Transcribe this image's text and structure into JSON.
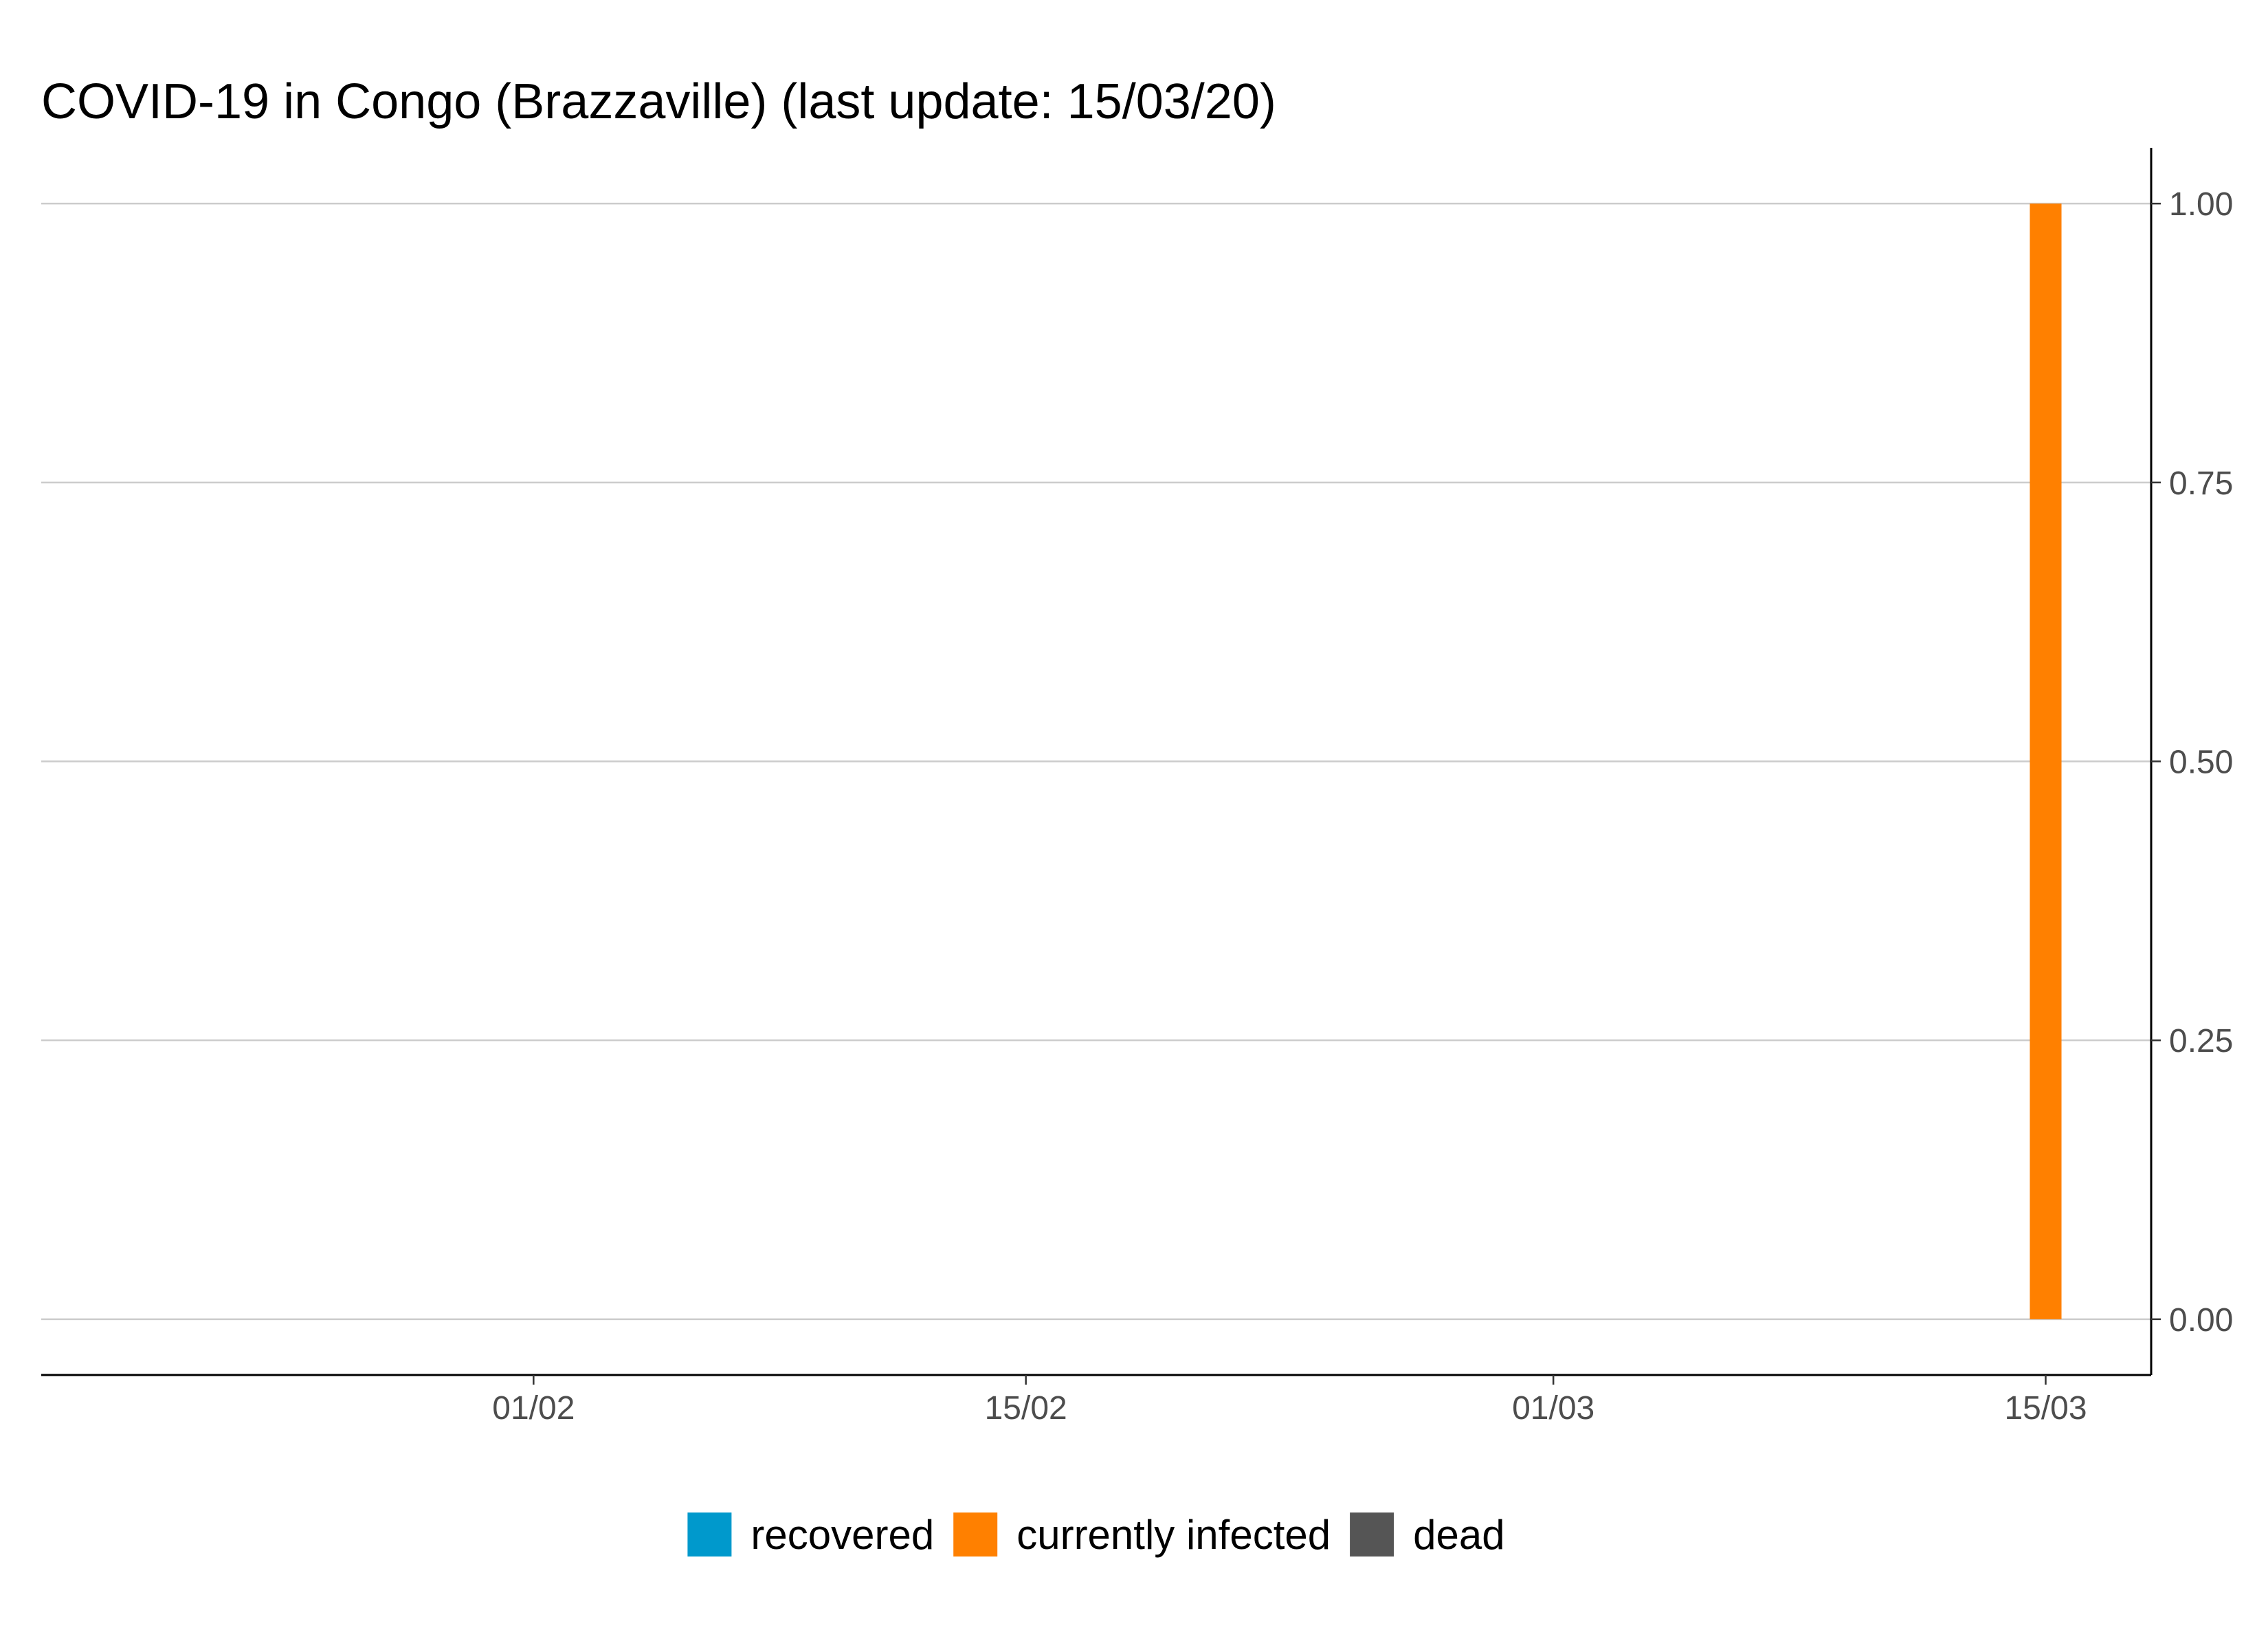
{
  "chart_data": {
    "type": "bar",
    "stacked": true,
    "title": "COVID-19 in Congo (Brazzaville) (last update: 15/03/20)",
    "xlabel": "",
    "ylabel": "",
    "x_type": "date",
    "x_range": [
      "2020-01-18",
      "2020-03-18"
    ],
    "x_ticks": [
      {
        "date": "2020-02-01",
        "label": "01/02"
      },
      {
        "date": "2020-02-15",
        "label": "15/02"
      },
      {
        "date": "2020-03-01",
        "label": "01/03"
      },
      {
        "date": "2020-03-15",
        "label": "15/03"
      }
    ],
    "y_axis_position": "right",
    "ylim": [
      -0.05,
      1.05
    ],
    "y_ticks": [
      0,
      0.25,
      0.5,
      0.75,
      1.0
    ],
    "y_tick_labels": [
      "0.00",
      "0.25",
      "0.50",
      "0.75",
      "1.00"
    ],
    "grid": {
      "horizontal": true,
      "vertical": false
    },
    "legend_position": "bottom",
    "dates": [
      "2020-03-15"
    ],
    "series": [
      {
        "name": "recovered",
        "color": "#0099cc",
        "values": [
          0
        ]
      },
      {
        "name": "currently infected",
        "color": "#ff8000",
        "values": [
          1
        ]
      },
      {
        "name": "dead",
        "color": "#555555",
        "values": [
          0
        ]
      }
    ]
  }
}
